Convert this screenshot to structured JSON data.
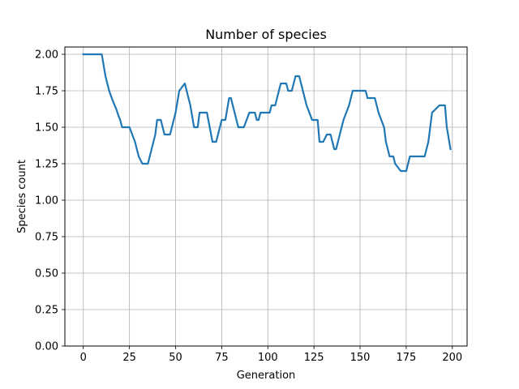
{
  "chart_data": {
    "type": "line",
    "title": "Number of species",
    "xlabel": "Generation",
    "ylabel": "Species count",
    "xlim": [
      -10,
      208
    ],
    "ylim": [
      0,
      2.05
    ],
    "xticks": [
      0,
      25,
      50,
      75,
      100,
      125,
      150,
      175,
      200
    ],
    "xtick_labels": [
      "0",
      "25",
      "50",
      "75",
      "100",
      "125",
      "150",
      "175",
      "200"
    ],
    "yticks": [
      0,
      0.25,
      0.5,
      0.75,
      1.0,
      1.25,
      1.5,
      1.75,
      2.0
    ],
    "ytick_labels": [
      "0.00",
      "0.25",
      "0.50",
      "0.75",
      "1.00",
      "1.25",
      "1.50",
      "1.75",
      "2.00"
    ],
    "grid": true,
    "line_color": "#1f77b4",
    "series": [
      {
        "x": [
          0,
          10,
          12,
          14,
          16,
          18,
          19,
          20,
          21,
          24,
          25,
          28,
          30,
          32,
          35,
          37,
          39,
          40,
          42,
          44,
          47,
          50,
          52,
          55,
          58,
          60,
          62,
          63,
          66,
          67,
          70,
          72,
          74,
          75,
          77,
          79,
          80,
          82,
          84,
          86,
          87,
          90,
          93,
          94,
          95,
          96,
          99,
          100,
          101,
          102,
          104,
          105,
          107,
          109,
          110,
          111,
          113,
          115,
          117,
          119,
          121,
          124,
          125,
          127,
          128,
          130,
          132,
          134,
          135,
          136,
          137,
          141,
          144,
          145,
          146,
          148,
          151,
          153,
          154,
          156,
          158,
          160,
          163,
          164,
          166,
          168,
          169,
          172,
          173,
          175,
          177,
          181,
          185,
          187,
          188,
          189,
          193,
          196,
          197,
          199
        ],
        "y": [
          2.0,
          2.0,
          1.85,
          1.75,
          1.68,
          1.62,
          1.58,
          1.55,
          1.5,
          1.5,
          1.5,
          1.4,
          1.3,
          1.25,
          1.25,
          1.35,
          1.45,
          1.55,
          1.55,
          1.45,
          1.45,
          1.6,
          1.75,
          1.8,
          1.65,
          1.5,
          1.5,
          1.6,
          1.6,
          1.6,
          1.4,
          1.4,
          1.5,
          1.55,
          1.55,
          1.7,
          1.7,
          1.6,
          1.5,
          1.5,
          1.5,
          1.6,
          1.6,
          1.55,
          1.55,
          1.6,
          1.6,
          1.6,
          1.6,
          1.65,
          1.65,
          1.7,
          1.8,
          1.8,
          1.8,
          1.75,
          1.75,
          1.85,
          1.85,
          1.75,
          1.65,
          1.55,
          1.55,
          1.55,
          1.4,
          1.4,
          1.45,
          1.45,
          1.4,
          1.35,
          1.35,
          1.55,
          1.65,
          1.7,
          1.75,
          1.75,
          1.75,
          1.75,
          1.7,
          1.7,
          1.7,
          1.6,
          1.5,
          1.4,
          1.3,
          1.3,
          1.25,
          1.2,
          1.2,
          1.2,
          1.3,
          1.3,
          1.3,
          1.4,
          1.5,
          1.6,
          1.65,
          1.65,
          1.5,
          1.35
        ]
      }
    ]
  }
}
